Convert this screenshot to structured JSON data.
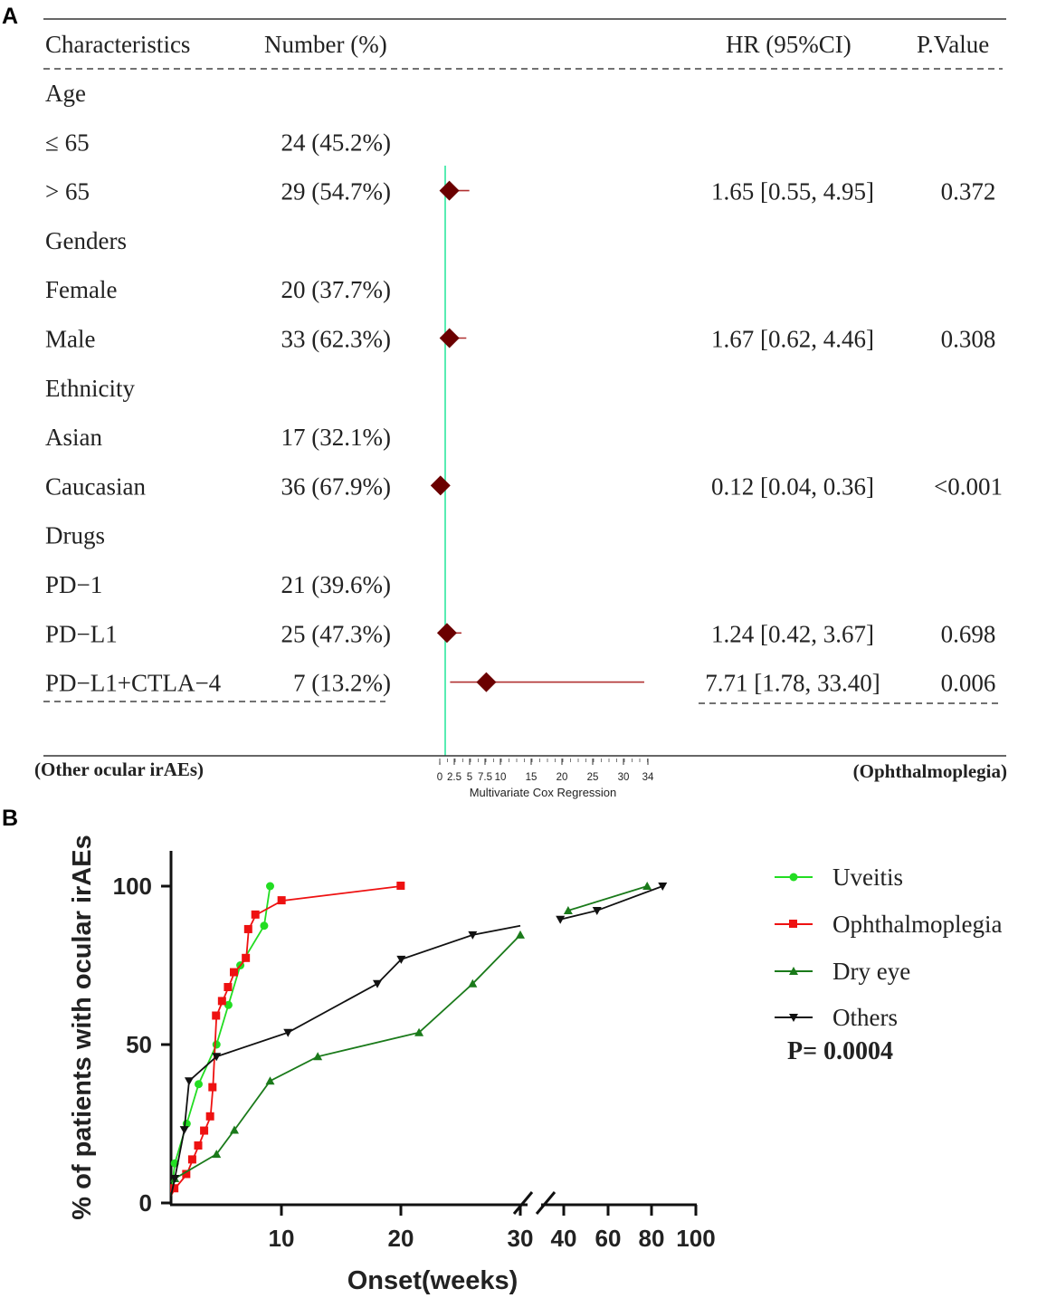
{
  "panel_a": {
    "label": "A",
    "headers": {
      "characteristics": "Characteristics",
      "number": "Number (%)",
      "hr": "HR (95%CI)",
      "pvalue": "P.Value"
    },
    "rows": [
      {
        "characteristic": "Age",
        "number": "",
        "hr_text": "",
        "p": ""
      },
      {
        "characteristic": "≤ 65",
        "number": "24 (45.2%)",
        "hr_text": "",
        "p": ""
      },
      {
        "characteristic": "> 65",
        "number": "29 (54.7%)",
        "hr_text": "1.65 [0.55, 4.95]",
        "p": "0.372"
      },
      {
        "characteristic": "Genders",
        "number": "",
        "hr_text": "",
        "p": ""
      },
      {
        "characteristic": "Female",
        "number": "20 (37.7%)",
        "hr_text": "",
        "p": ""
      },
      {
        "characteristic": "Male",
        "number": "33 (62.3%)",
        "hr_text": "1.67 [0.62, 4.46]",
        "p": "0.308"
      },
      {
        "characteristic": "Ethnicity",
        "number": "",
        "hr_text": "",
        "p": ""
      },
      {
        "characteristic": "Asian",
        "number": "17 (32.1%)",
        "hr_text": "",
        "p": ""
      },
      {
        "characteristic": "Caucasian",
        "number": "36 (67.9%)",
        "hr_text": "0.12 [0.04, 0.36]",
        "p": "<0.001"
      },
      {
        "characteristic": "Drugs",
        "number": "",
        "hr_text": "",
        "p": ""
      },
      {
        "characteristic": "PD−1",
        "number": "21 (39.6%)",
        "hr_text": "",
        "p": ""
      },
      {
        "characteristic": "PD−L1",
        "number": "25 (47.3%)",
        "hr_text": "1.24 [0.42, 3.67]",
        "p": "0.698"
      },
      {
        "characteristic": "PD−L1+CTLA−4",
        "number": "7 (13.2%)",
        "hr_text": "7.71 [1.78, 33.40]",
        "p": "0.006"
      }
    ],
    "left_label": "(Other ocular  irAEs)",
    "right_label": "(Ophthalmoplegia)",
    "axis_title": "Multivariate Cox Regression"
  },
  "panel_b": {
    "label": "B",
    "p_value": "P= 0.0004"
  },
  "colors": {
    "marker": "#6b0000",
    "ci_line": "#b03030",
    "ref_line": "#2ee8a0",
    "uveitis": "#22dd22",
    "ophthalmoplegia": "#ee1111",
    "dry_eye": "#1a7a1a",
    "others": "#111111"
  },
  "chart_data": [
    {
      "type": "forest",
      "title": "",
      "xlabel": "Multivariate Cox Regression",
      "xlim": [
        0,
        34
      ],
      "ticks": [
        0,
        2.5,
        5,
        7.5,
        10,
        15,
        20,
        25,
        30,
        34
      ],
      "tick_labels": [
        "0",
        "2.5",
        "5",
        "7.5",
        "10",
        "15",
        "20",
        "25",
        "30",
        "34"
      ],
      "reference": 1,
      "estimates": [
        {
          "row": 2,
          "hr": 1.65,
          "lower": 0.55,
          "upper": 4.95
        },
        {
          "row": 5,
          "hr": 1.67,
          "lower": 0.62,
          "upper": 4.46
        },
        {
          "row": 8,
          "hr": 0.12,
          "lower": 0.04,
          "upper": 0.36
        },
        {
          "row": 11,
          "hr": 1.24,
          "lower": 0.42,
          "upper": 3.67
        },
        {
          "row": 12,
          "hr": 7.71,
          "lower": 1.78,
          "upper": 33.4
        }
      ]
    },
    {
      "type": "line",
      "title": "",
      "xlabel": "Onset(weeks)",
      "ylabel": "% of patients with ocular irAEs",
      "ylim": [
        0,
        110
      ],
      "yticks": [
        0,
        50,
        100
      ],
      "x_segments": [
        {
          "range": [
            0,
            30
          ],
          "scale": "linear",
          "ticks": [
            10,
            20,
            30
          ]
        },
        {
          "range": [
            30,
            100
          ],
          "scale": "log",
          "ticks": [
            40,
            60,
            80,
            100
          ]
        }
      ],
      "legend_position": "right",
      "series": [
        {
          "name": "Uveitis",
          "color": "uveitis",
          "marker": "circle",
          "x": [
            1,
            2,
            3,
            4.5,
            5.5,
            6.5,
            8.5,
            9
          ],
          "y": [
            12.5,
            25,
            37.5,
            50,
            62.5,
            75,
            87.5,
            100
          ]
        },
        {
          "name": "Ophthalmoplegia",
          "color": "ophthalmoplegia",
          "marker": "square",
          "x": [
            1,
            2,
            2.5,
            3,
            3.5,
            4,
            4.2,
            4.5,
            5,
            5.5,
            6,
            7,
            7.2,
            7.8,
            10,
            20
          ],
          "y": [
            4.5,
            9,
            13.6,
            18,
            22.7,
            27.2,
            36.4,
            59,
            63.6,
            68,
            72.7,
            77.2,
            86.3,
            90.9,
            95.4,
            100
          ]
        },
        {
          "name": "Dry eye",
          "color": "dry_eye",
          "marker": "triangle-up",
          "x": [
            1,
            4.5,
            6,
            9,
            13,
            21.5,
            26,
            30,
            42,
            78
          ],
          "y": [
            7.7,
            15.4,
            23,
            38.5,
            46.2,
            53.8,
            69.2,
            84.6,
            92.3,
            100
          ]
        },
        {
          "name": "Others",
          "color": "others",
          "marker": "triangle-down",
          "x": [
            1,
            1.8,
            2.2,
            4.5,
            10.5,
            18,
            20,
            26,
            30,
            38,
            55,
            85
          ],
          "y": [
            7.7,
            23.1,
            38.5,
            46.2,
            53.8,
            69.2,
            76.9,
            84.6,
            87.5,
            89.5,
            92.3,
            100
          ]
        }
      ]
    }
  ]
}
